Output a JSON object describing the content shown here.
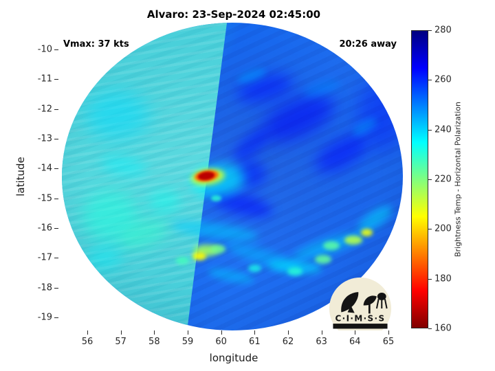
{
  "figure": {
    "title": "Alvaro: 23-Sep-2024 02:45:00",
    "vmax_label": "Vmax: 37 kts",
    "time_label": "20:26 away",
    "xlabel": "longitude",
    "ylabel": "latitude",
    "logo_text": "C·I·M·S·S"
  },
  "chart_data": {
    "type": "heatmap",
    "title": "Alvaro: 23-Sep-2024 02:45:00",
    "annotations": {
      "top_left": "Vmax: 37 kts",
      "top_right": "20:26 away"
    },
    "xlabel": "longitude",
    "ylabel": "latitude",
    "xticks": [
      56,
      57,
      58,
      59,
      60,
      61,
      62,
      63,
      64,
      65
    ],
    "yticks": [
      -10,
      -11,
      -12,
      -13,
      -14,
      -15,
      -16,
      -17,
      -18,
      -19
    ],
    "xlim": [
      55.1,
      65.4
    ],
    "ylim": [
      -19.4,
      -9.1
    ],
    "grid": false,
    "colorbar": {
      "label": "Brightness Temp - Horizontal Polarization",
      "range": [
        160,
        280
      ],
      "ticks": [
        280,
        260,
        240,
        220,
        200,
        180,
        160
      ],
      "position": "right",
      "colormap": "jet (280 dark blue at top to 160 dark red at bottom)"
    },
    "swath": {
      "shape": "circular microwave swath disc",
      "center_lon": 60.4,
      "center_lat": -14.3,
      "radius_deg": 5.1,
      "left_segment_tb": 241,
      "right_segment_tb": 257,
      "seam": {
        "top_lon": 60.17,
        "bottom_lon": 58.98
      }
    },
    "features": [
      {
        "name": "light-patch-nw",
        "lon": 56.9,
        "lat": -12.2,
        "w": 1.9,
        "h": 1.6,
        "tb": 239,
        "rot": 0,
        "blur": 14,
        "op": 0.5
      },
      {
        "name": "light-streak-w",
        "lon": 57.1,
        "lat": -13.9,
        "w": 1.4,
        "h": 0.6,
        "tb": 236,
        "rot": 10,
        "blur": 9,
        "op": 0.45
      },
      {
        "name": "green-patch-sw",
        "lon": 56.7,
        "lat": -15.6,
        "w": 1.7,
        "h": 1.7,
        "tb": 231,
        "rot": 0,
        "blur": 12,
        "op": 0.5
      },
      {
        "name": "green-streak-sw",
        "lon": 57.7,
        "lat": -16.2,
        "w": 1.5,
        "h": 0.8,
        "tb": 229,
        "rot": -20,
        "blur": 10,
        "op": 0.5
      },
      {
        "name": "teal-patch-s",
        "lon": 58.3,
        "lat": -15.1,
        "w": 1.0,
        "h": 0.8,
        "tb": 233,
        "rot": 0,
        "blur": 9,
        "op": 0.45
      },
      {
        "name": "teal-patch-ssw",
        "lon": 56.5,
        "lat": -17.0,
        "w": 1.1,
        "h": 0.8,
        "tb": 236,
        "rot": 0,
        "blur": 10,
        "op": 0.4
      },
      {
        "name": "dark-band-ne",
        "lon": 62.3,
        "lat": -12.3,
        "w": 2.3,
        "h": 1.2,
        "tb": 266,
        "rot": -25,
        "blur": 12,
        "op": 0.55
      },
      {
        "name": "dark-band-e",
        "lon": 63.6,
        "lat": -13.5,
        "w": 1.7,
        "h": 0.9,
        "tb": 265,
        "rot": -30,
        "blur": 10,
        "op": 0.5
      },
      {
        "name": "dark-band-n",
        "lon": 61.3,
        "lat": -11.3,
        "w": 1.7,
        "h": 0.8,
        "tb": 264,
        "rot": -15,
        "blur": 10,
        "op": 0.5
      },
      {
        "name": "dark-edge-e",
        "lon": 64.8,
        "lat": -12.2,
        "w": 1.4,
        "h": 2.4,
        "tb": 263,
        "rot": 0,
        "blur": 14,
        "op": 0.4
      },
      {
        "name": "dark-band-center-n",
        "lon": 60.9,
        "lat": -13.2,
        "w": 1.3,
        "h": 0.6,
        "tb": 263,
        "rot": -40,
        "blur": 8,
        "op": 0.5
      },
      {
        "name": "moat-s-of-eye",
        "lon": 60.6,
        "lat": -15.2,
        "w": 1.9,
        "h": 0.7,
        "tb": 265,
        "rot": 15,
        "blur": 8,
        "op": 0.5
      },
      {
        "name": "dark-e-of-eye",
        "lon": 60.9,
        "lat": -14.2,
        "w": 0.9,
        "h": 0.9,
        "tb": 262,
        "rot": 0,
        "blur": 8,
        "op": 0.5
      },
      {
        "name": "cyan-band-s1",
        "lon": 59.8,
        "lat": -16.1,
        "w": 2.6,
        "h": 0.5,
        "tb": 241,
        "rot": 8,
        "blur": 6,
        "op": 0.55
      },
      {
        "name": "cyan-band-s2",
        "lon": 61.3,
        "lat": -17.0,
        "w": 2.4,
        "h": 0.5,
        "tb": 243,
        "rot": 18,
        "blur": 6,
        "op": 0.5
      },
      {
        "name": "cyan-band-se",
        "lon": 63.2,
        "lat": -16.6,
        "w": 2.2,
        "h": 0.5,
        "tb": 241,
        "rot": -18,
        "blur": 6,
        "op": 0.55
      },
      {
        "name": "cyan-band-e",
        "lon": 64.6,
        "lat": -15.7,
        "w": 1.2,
        "h": 0.5,
        "tb": 239,
        "rot": -35,
        "blur": 6,
        "op": 0.55
      },
      {
        "name": "cyan-band-s3",
        "lon": 62.2,
        "lat": -17.3,
        "w": 1.6,
        "h": 0.45,
        "tb": 238,
        "rot": 5,
        "blur": 5,
        "op": 0.55
      },
      {
        "name": "cyan-band-s4",
        "lon": 60.3,
        "lat": -17.6,
        "w": 1.4,
        "h": 0.4,
        "tb": 242,
        "rot": 12,
        "blur": 5,
        "op": 0.5
      },
      {
        "name": "cyan-streak-n1",
        "lon": 60.9,
        "lat": -10.9,
        "w": 0.9,
        "h": 0.35,
        "tb": 247,
        "rot": -20,
        "blur": 5,
        "op": 0.55
      },
      {
        "name": "cyan-streak-n2",
        "lon": 63.0,
        "lat": -11.3,
        "w": 1.1,
        "h": 0.4,
        "tb": 249,
        "rot": -15,
        "blur": 6,
        "op": 0.5
      },
      {
        "name": "cyan-streak-ne",
        "lon": 64.3,
        "lat": -12.6,
        "w": 0.8,
        "h": 0.35,
        "tb": 247,
        "rot": -30,
        "blur": 5,
        "op": 0.5
      },
      {
        "name": "convective-cell-s1",
        "lon": 59.55,
        "lat": -16.75,
        "w": 0.75,
        "h": 0.4,
        "tb": 216,
        "rot": 0,
        "blur": 4,
        "op": 0.9
      },
      {
        "name": "convective-cell-s1-core",
        "lon": 59.35,
        "lat": -16.95,
        "w": 0.4,
        "h": 0.28,
        "tb": 205,
        "rot": 0,
        "blur": 3,
        "op": 0.9
      },
      {
        "name": "convective-cell-s2",
        "lon": 59.9,
        "lat": -16.7,
        "w": 0.45,
        "h": 0.3,
        "tb": 221,
        "rot": 0,
        "blur": 3,
        "op": 0.85
      },
      {
        "name": "convective-cell-s5",
        "lon": 58.85,
        "lat": -17.1,
        "w": 0.4,
        "h": 0.25,
        "tb": 227,
        "rot": 0,
        "blur": 3,
        "op": 0.8
      },
      {
        "name": "convective-cell-se1",
        "lon": 63.95,
        "lat": -16.4,
        "w": 0.55,
        "h": 0.3,
        "tb": 214,
        "rot": 0,
        "blur": 3,
        "op": 0.9
      },
      {
        "name": "convective-cell-se2",
        "lon": 64.35,
        "lat": -16.15,
        "w": 0.35,
        "h": 0.25,
        "tb": 207,
        "rot": 0,
        "blur": 3,
        "op": 0.9
      },
      {
        "name": "convective-cell-se3",
        "lon": 63.3,
        "lat": -16.6,
        "w": 0.5,
        "h": 0.3,
        "tb": 224,
        "rot": 0,
        "blur": 3,
        "op": 0.85
      },
      {
        "name": "convective-cell-s3",
        "lon": 63.05,
        "lat": -17.05,
        "w": 0.5,
        "h": 0.3,
        "tb": 223,
        "rot": 0,
        "blur": 3,
        "op": 0.85
      },
      {
        "name": "convective-cell-s4",
        "lon": 62.2,
        "lat": -17.45,
        "w": 0.45,
        "h": 0.28,
        "tb": 230,
        "rot": 0,
        "blur": 3,
        "op": 0.8
      },
      {
        "name": "convective-cell-s6",
        "lon": 61.0,
        "lat": -17.35,
        "w": 0.4,
        "h": 0.26,
        "tb": 232,
        "rot": 0,
        "blur": 3,
        "op": 0.75
      },
      {
        "name": "cell-below-eye",
        "lon": 59.85,
        "lat": -15.0,
        "w": 0.3,
        "h": 0.22,
        "tb": 228,
        "rot": 0,
        "blur": 2,
        "op": 0.8
      },
      {
        "name": "eye-environment",
        "lon": 59.9,
        "lat": -14.4,
        "w": 1.6,
        "h": 1.1,
        "tb": 236,
        "rot": -10,
        "blur": 8,
        "op": 0.6
      },
      {
        "name": "eye-halo",
        "lon": 59.6,
        "lat": -14.27,
        "w": 1.0,
        "h": 0.52,
        "tb": 211,
        "rot": -8,
        "blur": 4,
        "op": 0.9
      },
      {
        "name": "eye-ring",
        "lon": 59.57,
        "lat": -14.26,
        "w": 0.72,
        "h": 0.38,
        "tb": 186,
        "rot": -8,
        "blur": 2,
        "op": 0.95
      },
      {
        "name": "eye-core",
        "lon": 59.55,
        "lat": -14.25,
        "w": 0.5,
        "h": 0.27,
        "tb": 167,
        "rot": -8,
        "blur": 1.5,
        "op": 1
      }
    ]
  }
}
